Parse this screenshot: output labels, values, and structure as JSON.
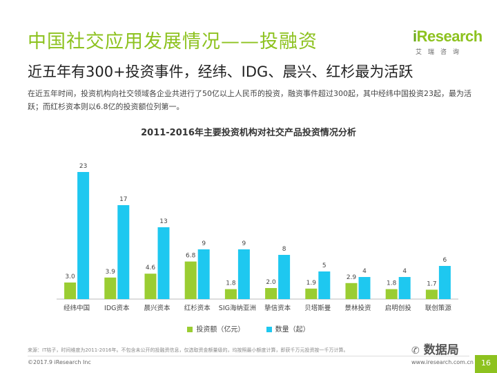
{
  "header": {
    "title": "中国社交应用发展情况——投融资",
    "subtitle": "近五年有300+投资事件，经纬、IDG、晨兴、红杉最为活跃",
    "description": "在近五年时间，投资机构向社交领域各企业共进行了50亿以上人民币的投资，融资事件超过300起，其中经纬中国投资23起，最为活跃；而红杉资本则以6.8亿的投资额位列第一。"
  },
  "logo": {
    "prefix": "i",
    "name": "Research",
    "sub": "艾瑞咨询"
  },
  "colors": {
    "amount": "#9acd32",
    "count": "#1ec8f0",
    "brand": "#8dc21f"
  },
  "chart_data": {
    "type": "bar",
    "title": "2011-2016年主要投资机构对社交产品投资情况分析",
    "categories": [
      "经纬中国",
      "IDG资本",
      "晨兴资本",
      "红杉资本",
      "SIG海纳亚洲",
      "挚信资本",
      "贝塔斯曼",
      "景林投资",
      "启明创投",
      "联创策源"
    ],
    "series": [
      {
        "name": "投资额（亿元）",
        "values": [
          3.0,
          3.9,
          4.6,
          6.8,
          1.8,
          2.0,
          1.9,
          2.9,
          1.8,
          1.7
        ],
        "labels": [
          "3.0",
          "3.9",
          "4.6",
          "6.8",
          "1.8",
          "2.0",
          "1.9",
          "2.9",
          "1.8",
          "1.7"
        ]
      },
      {
        "name": "数量（起）",
        "values": [
          23,
          17,
          13,
          9,
          9,
          8,
          5,
          4,
          4,
          6
        ],
        "labels": [
          "23",
          "17",
          "13",
          "9",
          "9",
          "8",
          "5",
          "4",
          "4",
          "6"
        ]
      }
    ],
    "ylim": [
      0,
      25
    ],
    "xlabel": "",
    "ylabel": ""
  },
  "footer": {
    "source": "来源：IT桔子，时间维度为2011-2016年。不包含未公开的投融资信息，仅选取资金额量级的，均按照最小额度计算，即获千万元投资按一千万计算。",
    "copyright": "©2017.9 iResearch Inc",
    "website": "www.iresearch.com.cn",
    "page": "16",
    "watermark": "数据局"
  }
}
